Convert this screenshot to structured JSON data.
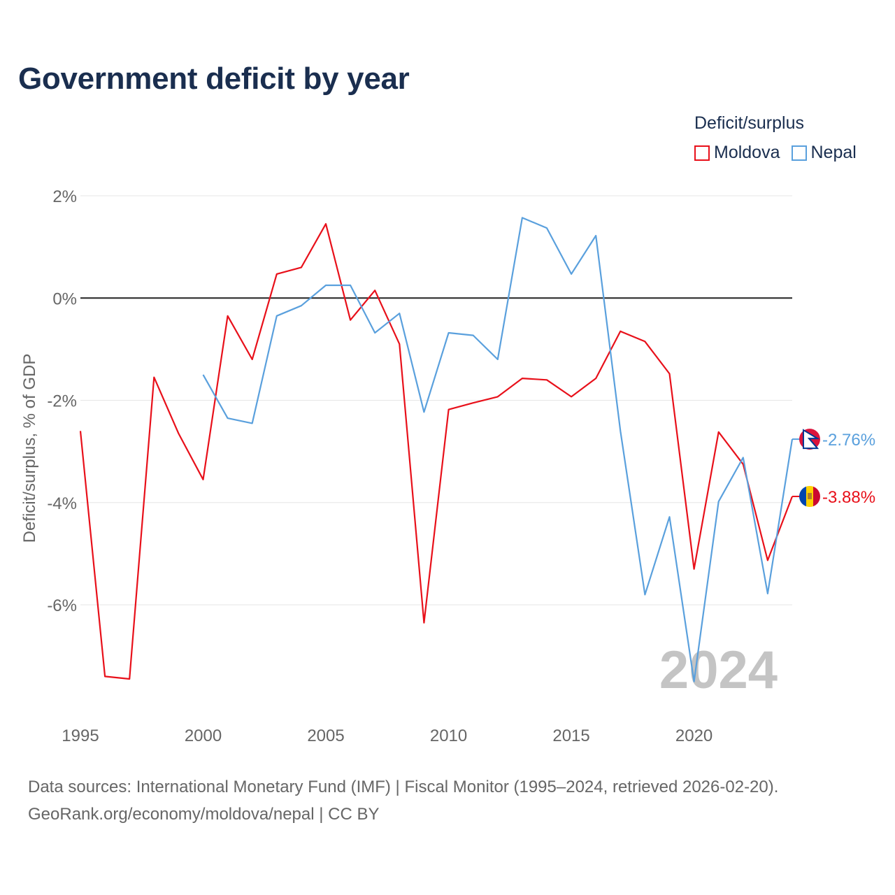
{
  "title": "Government deficit by year",
  "legend": {
    "title": "Deficit/surplus",
    "items": [
      {
        "label": "Moldova",
        "color": "#e8101a"
      },
      {
        "label": "Nepal",
        "color": "#5aa0dd"
      }
    ]
  },
  "footer": {
    "line1": "Data sources: International Monetary Fund (IMF) | Fiscal Monitor (1995–2024, retrieved 2026-02-20).",
    "line2": "GeoRank.org/economy/moldova/nepal | CC BY"
  },
  "chart_data": {
    "type": "line",
    "title": "Government deficit by year",
    "xlabel": "",
    "ylabel": "Deficit/surplus, % of GDP",
    "year_watermark": "2024",
    "xlim": [
      1995,
      2024
    ],
    "ylim": [
      -7.8,
      2.2
    ],
    "x_ticks": [
      1995,
      2000,
      2005,
      2010,
      2015,
      2020
    ],
    "x_tick_labels": [
      "1995",
      "2000",
      "2005",
      "2010",
      "2015",
      "2020"
    ],
    "y_ticks": [
      2,
      0,
      -2,
      -4,
      -6
    ],
    "y_tick_labels": [
      "2%",
      "0%",
      "-2%",
      "-4%",
      "-6%"
    ],
    "zero_line": true,
    "grid": true,
    "series": [
      {
        "name": "Moldova",
        "color": "#e8101a",
        "x": [
          1995,
          1996,
          1997,
          1998,
          1999,
          2000,
          2001,
          2002,
          2003,
          2004,
          2005,
          2006,
          2007,
          2008,
          2009,
          2010,
          2011,
          2012,
          2013,
          2014,
          2015,
          2016,
          2017,
          2018,
          2019,
          2020,
          2021,
          2022,
          2023,
          2024
        ],
        "values": [
          -2.6,
          -7.4,
          -7.45,
          -1.55,
          -2.65,
          -3.55,
          -0.35,
          -1.2,
          0.47,
          0.6,
          1.45,
          -0.43,
          0.15,
          -0.9,
          -6.35,
          -2.18,
          -2.05,
          -1.93,
          -1.57,
          -1.6,
          -1.93,
          -1.57,
          -0.65,
          -0.85,
          -1.48,
          -5.3,
          -2.62,
          -3.25,
          -5.13,
          -3.88
        ],
        "end_label": "-3.88%",
        "flag": "moldova-flag-icon"
      },
      {
        "name": "Nepal",
        "color": "#5aa0dd",
        "x": [
          2000,
          2001,
          2002,
          2003,
          2004,
          2005,
          2006,
          2007,
          2008,
          2009,
          2010,
          2011,
          2012,
          2013,
          2014,
          2015,
          2016,
          2017,
          2018,
          2019,
          2020,
          2021,
          2022,
          2023,
          2024
        ],
        "values": [
          -1.5,
          -2.35,
          -2.45,
          -0.35,
          -0.15,
          0.25,
          0.25,
          -0.68,
          -0.3,
          -2.23,
          -0.68,
          -0.73,
          -1.2,
          1.57,
          1.37,
          0.47,
          1.22,
          -2.6,
          -5.8,
          -4.28,
          -7.5,
          -3.98,
          -3.12,
          -5.78,
          -2.76
        ],
        "end_label": "-2.76%",
        "flag": "nepal-flag-icon"
      }
    ]
  }
}
